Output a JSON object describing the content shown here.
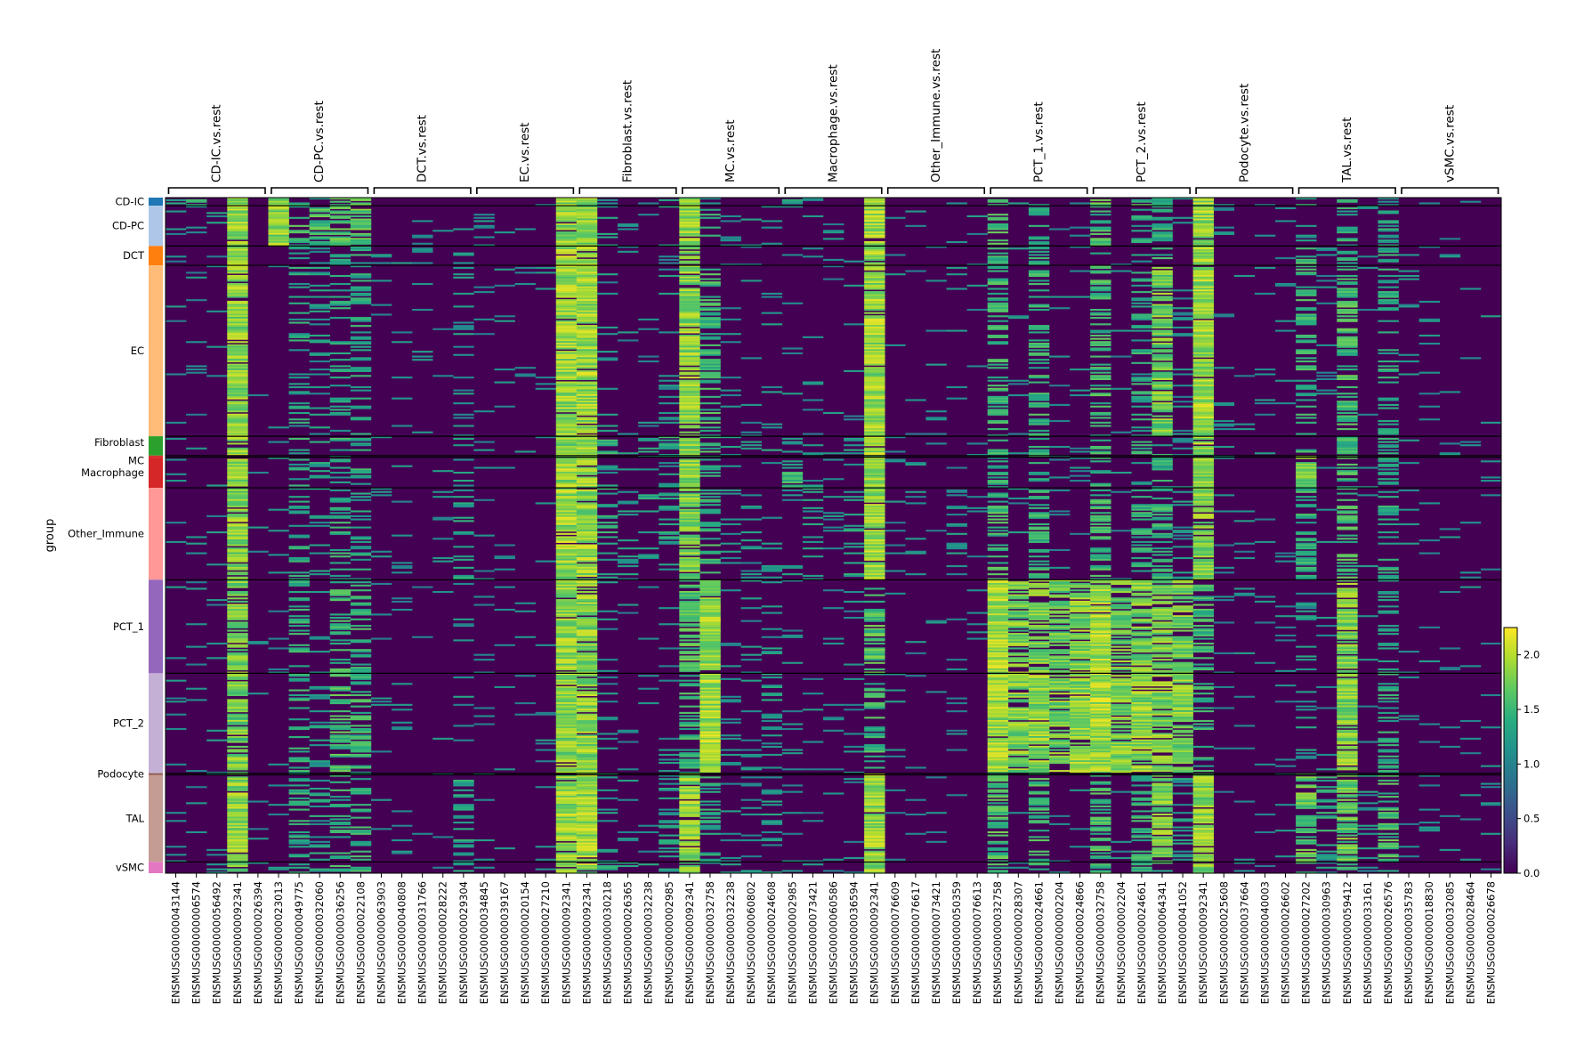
{
  "chart_data": {
    "type": "heatmap",
    "ylabel": "group",
    "groups": [
      {
        "name": "CD-IC",
        "color": "#1f77b4",
        "rows": 5
      },
      {
        "name": "CD-PC",
        "color": "#aec7e8",
        "rows": 25
      },
      {
        "name": "DCT",
        "color": "#ff7f0e",
        "rows": 12
      },
      {
        "name": "EC",
        "color": "#ffbb78",
        "rows": 106
      },
      {
        "name": "Fibroblast",
        "color": "#2ca02c",
        "rows": 12
      },
      {
        "name": "MC",
        "color": "#d62728",
        "rows": 1
      },
      {
        "name": "Macrophage",
        "color": "#d62728",
        "rows": 19
      },
      {
        "name": "Other_Immune",
        "color": "#ff9896",
        "rows": 57
      },
      {
        "name": "PCT_1",
        "color": "#9467bd",
        "rows": 58
      },
      {
        "name": "PCT_2",
        "color": "#c5b0d5",
        "rows": 62
      },
      {
        "name": "Podocyte",
        "color": "#8c564b",
        "rows": 1
      },
      {
        "name": "TAL",
        "color": "#c49c94",
        "rows": 54
      },
      {
        "name": "vSMC",
        "color": "#e377c2",
        "rows": 7
      }
    ],
    "gene_groups": [
      {
        "label": "CD-IC.vs.rest",
        "genes": [
          "ENSMUSG00000043144",
          "ENSMUSG00000006574",
          "ENSMUSG00000056492",
          "ENSMUSG00000092341",
          "ENSMUSG00000026394"
        ]
      },
      {
        "label": "CD-PC.vs.rest",
        "genes": [
          "ENSMUSG00000023013",
          "ENSMUSG00000049775",
          "ENSMUSG00000032060",
          "ENSMUSG00000036256",
          "ENSMUSG00000022108"
        ]
      },
      {
        "label": "DCT.vs.rest",
        "genes": [
          "ENSMUSG00000063903",
          "ENSMUSG00000040808",
          "ENSMUSG00000031766",
          "ENSMUSG00000028222",
          "ENSMUSG00000029304"
        ]
      },
      {
        "label": "EC.vs.rest",
        "genes": [
          "ENSMUSG00000034845",
          "ENSMUSG00000039167",
          "ENSMUSG00000020154",
          "ENSMUSG00000027210",
          "ENSMUSG00000092341"
        ]
      },
      {
        "label": "Fibroblast.vs.rest",
        "genes": [
          "ENSMUSG00000092341",
          "ENSMUSG00000030218",
          "ENSMUSG00000026365",
          "ENSMUSG00000032238",
          "ENSMUSG00000002985"
        ]
      },
      {
        "label": "MC.vs.rest",
        "genes": [
          "ENSMUSG00000092341",
          "ENSMUSG00000032758",
          "ENSMUSG00000032238",
          "ENSMUSG00000060802",
          "ENSMUSG00000024608"
        ]
      },
      {
        "label": "Macrophage.vs.rest",
        "genes": [
          "ENSMUSG00000002985",
          "ENSMUSG00000073421",
          "ENSMUSG00000060586",
          "ENSMUSG00000036594",
          "ENSMUSG00000092341"
        ]
      },
      {
        "label": "Other_Immune.vs.rest",
        "genes": [
          "ENSMUSG00000076609",
          "ENSMUSG00000076617",
          "ENSMUSG00000073421",
          "ENSMUSG00000050359",
          "ENSMUSG00000076613"
        ]
      },
      {
        "label": "PCT_1.vs.rest",
        "genes": [
          "ENSMUSG00000032758",
          "ENSMUSG00000028307",
          "ENSMUSG00000024661",
          "ENSMUSG00000002204",
          "ENSMUSG00000024866"
        ]
      },
      {
        "label": "PCT_2.vs.rest",
        "genes": [
          "ENSMUSG00000032758",
          "ENSMUSG00000002204",
          "ENSMUSG00000024661",
          "ENSMUSG00000064341",
          "ENSMUSG00000041052"
        ]
      },
      {
        "label": "Podocyte.vs.rest",
        "genes": [
          "ENSMUSG00000092341",
          "ENSMUSG00000025608",
          "ENSMUSG00000037664",
          "ENSMUSG00000040003",
          "ENSMUSG00000026602"
        ]
      },
      {
        "label": "TAL.vs.rest",
        "genes": [
          "ENSMUSG00000027202",
          "ENSMUSG00000030963",
          "ENSMUSG00000059412",
          "ENSMUSG00000033161",
          "ENSMUSG00000026576"
        ]
      },
      {
        "label": "vSMC.vs.rest",
        "genes": [
          "ENSMUSG00000035783",
          "ENSMUSG00000018830",
          "ENSMUSG00000032085",
          "ENSMUSG00000028464",
          "ENSMUSG00000026678"
        ]
      }
    ],
    "colorbar": {
      "colormap": "viridis",
      "vmin": 0.0,
      "vmax": 2.25,
      "ticks": [
        "0.0",
        "0.5",
        "1.0",
        "1.5",
        "2.0"
      ]
    },
    "expression_profile": {
      "note_scale": "approximate fraction of cells expressing each gene column per cell group (0-1), read visually",
      "values": [
        [
          0.35,
          0.35,
          0.3,
          0.95,
          0.1,
          0.75,
          0.4,
          0.35,
          0.55,
          0.75,
          0.05,
          0.05,
          0.05,
          0.05,
          0.05,
          0.1,
          0.05,
          0.05,
          0.05,
          0.95,
          0.95,
          0.15,
          0.1,
          0.1,
          0.2,
          0.9,
          0.3,
          0.1,
          0.05,
          0.1,
          0.3,
          0.1,
          0.05,
          0.05,
          0.95,
          0.05,
          0.05,
          0.05,
          0.05,
          0.05,
          0.6,
          0.1,
          0.5,
          0.05,
          0.1,
          0.6,
          0.1,
          0.5,
          0.5,
          0.2,
          0.95,
          0.05,
          0.05,
          0.05,
          0.05,
          0.3,
          0.1,
          0.3,
          0.1,
          0.3,
          0.05,
          0.05,
          0.05,
          0.05,
          0.05
        ],
        [
          0.1,
          0.1,
          0.15,
          0.95,
          0.05,
          0.9,
          0.5,
          0.55,
          0.6,
          0.7,
          0.05,
          0.05,
          0.05,
          0.05,
          0.1,
          0.1,
          0.05,
          0.05,
          0.05,
          0.95,
          0.95,
          0.2,
          0.1,
          0.1,
          0.2,
          0.9,
          0.35,
          0.1,
          0.1,
          0.2,
          0.1,
          0.05,
          0.05,
          0.05,
          0.95,
          0.05,
          0.05,
          0.05,
          0.05,
          0.05,
          0.5,
          0.05,
          0.4,
          0.05,
          0.1,
          0.5,
          0.05,
          0.3,
          0.4,
          0.1,
          0.95,
          0.05,
          0.05,
          0.05,
          0.05,
          0.2,
          0.05,
          0.4,
          0.05,
          0.3,
          0.05,
          0.05,
          0.05,
          0.05,
          0.05
        ],
        [
          0.05,
          0.05,
          0.05,
          0.95,
          0.05,
          0.1,
          0.3,
          0.2,
          0.3,
          0.35,
          0.15,
          0.05,
          0.05,
          0.05,
          0.3,
          0.05,
          0.05,
          0.05,
          0.05,
          0.95,
          0.95,
          0.1,
          0.05,
          0.05,
          0.1,
          0.85,
          0.2,
          0.05,
          0.05,
          0.1,
          0.05,
          0.05,
          0.05,
          0.05,
          0.95,
          0.05,
          0.05,
          0.05,
          0.05,
          0.05,
          0.4,
          0.05,
          0.4,
          0.05,
          0.05,
          0.4,
          0.05,
          0.3,
          0.4,
          0.1,
          0.95,
          0.05,
          0.05,
          0.05,
          0.05,
          0.5,
          0.1,
          0.5,
          0.1,
          0.4,
          0.05,
          0.05,
          0.05,
          0.05,
          0.05
        ],
        [
          0.05,
          0.05,
          0.05,
          0.9,
          0.05,
          0.05,
          0.3,
          0.2,
          0.3,
          0.35,
          0.05,
          0.05,
          0.05,
          0.05,
          0.15,
          0.05,
          0.05,
          0.05,
          0.05,
          0.95,
          0.95,
          0.15,
          0.05,
          0.05,
          0.1,
          0.9,
          0.5,
          0.05,
          0.05,
          0.1,
          0.05,
          0.05,
          0.05,
          0.05,
          0.95,
          0.05,
          0.05,
          0.05,
          0.05,
          0.05,
          0.5,
          0.05,
          0.45,
          0.05,
          0.05,
          0.5,
          0.05,
          0.35,
          0.8,
          0.1,
          0.95,
          0.05,
          0.05,
          0.05,
          0.05,
          0.45,
          0.05,
          0.55,
          0.05,
          0.35,
          0.05,
          0.05,
          0.05,
          0.05,
          0.05
        ],
        [
          0.05,
          0.05,
          0.05,
          0.9,
          0.05,
          0.05,
          0.35,
          0.3,
          0.4,
          0.35,
          0.05,
          0.05,
          0.05,
          0.05,
          0.25,
          0.05,
          0.05,
          0.05,
          0.05,
          0.95,
          0.95,
          0.45,
          0.3,
          0.3,
          0.4,
          0.9,
          0.45,
          0.2,
          0.15,
          0.3,
          0.2,
          0.1,
          0.05,
          0.35,
          0.95,
          0.05,
          0.05,
          0.05,
          0.05,
          0.05,
          0.45,
          0.05,
          0.45,
          0.05,
          0.05,
          0.45,
          0.05,
          0.35,
          0.45,
          0.1,
          0.9,
          0.05,
          0.05,
          0.05,
          0.05,
          0.4,
          0.05,
          0.5,
          0.05,
          0.35,
          0.05,
          0.05,
          0.05,
          0.05,
          0.05
        ],
        [
          0.05,
          0.05,
          0.05,
          0.9,
          0.05,
          0.05,
          0.3,
          0.2,
          0.3,
          0.3,
          0.05,
          0.05,
          0.05,
          0.05,
          0.2,
          0.05,
          0.05,
          0.05,
          0.05,
          0.95,
          0.95,
          0.3,
          0.2,
          0.2,
          0.3,
          0.9,
          0.4,
          0.1,
          0.1,
          0.2,
          0.3,
          0.1,
          0.05,
          0.2,
          0.95,
          0.05,
          0.05,
          0.05,
          0.05,
          0.05,
          0.4,
          0.05,
          0.4,
          0.05,
          0.05,
          0.4,
          0.05,
          0.3,
          0.4,
          0.1,
          0.9,
          0.05,
          0.05,
          0.05,
          0.05,
          0.8,
          0.1,
          0.5,
          0.1,
          0.4,
          0.05,
          0.05,
          0.05,
          0.05,
          0.05
        ],
        [
          0.05,
          0.05,
          0.05,
          0.9,
          0.05,
          0.05,
          0.3,
          0.25,
          0.35,
          0.35,
          0.05,
          0.05,
          0.05,
          0.05,
          0.2,
          0.05,
          0.05,
          0.05,
          0.05,
          0.95,
          0.95,
          0.2,
          0.1,
          0.1,
          0.2,
          0.9,
          0.4,
          0.1,
          0.1,
          0.2,
          0.5,
          0.1,
          0.05,
          0.1,
          0.95,
          0.05,
          0.05,
          0.05,
          0.05,
          0.05,
          0.4,
          0.05,
          0.4,
          0.05,
          0.05,
          0.4,
          0.05,
          0.3,
          0.4,
          0.1,
          0.9,
          0.05,
          0.05,
          0.05,
          0.05,
          0.8,
          0.1,
          0.5,
          0.1,
          0.4,
          0.05,
          0.05,
          0.05,
          0.05,
          0.05
        ],
        [
          0.05,
          0.05,
          0.05,
          0.85,
          0.05,
          0.05,
          0.3,
          0.2,
          0.35,
          0.3,
          0.05,
          0.05,
          0.05,
          0.05,
          0.25,
          0.05,
          0.05,
          0.05,
          0.05,
          0.95,
          0.95,
          0.35,
          0.2,
          0.25,
          0.3,
          0.85,
          0.45,
          0.15,
          0.15,
          0.25,
          0.1,
          0.3,
          0.1,
          0.25,
          0.95,
          0.05,
          0.1,
          0.05,
          0.15,
          0.05,
          0.5,
          0.05,
          0.45,
          0.05,
          0.05,
          0.5,
          0.1,
          0.4,
          0.45,
          0.15,
          0.85,
          0.05,
          0.05,
          0.05,
          0.05,
          0.45,
          0.05,
          0.55,
          0.05,
          0.35,
          0.05,
          0.05,
          0.05,
          0.05,
          0.05
        ],
        [
          0.05,
          0.05,
          0.05,
          0.8,
          0.05,
          0.05,
          0.4,
          0.2,
          0.5,
          0.45,
          0.05,
          0.05,
          0.05,
          0.05,
          0.1,
          0.05,
          0.05,
          0.05,
          0.05,
          0.9,
          0.9,
          0.1,
          0.05,
          0.05,
          0.1,
          0.6,
          0.95,
          0.1,
          0.1,
          0.2,
          0.05,
          0.05,
          0.05,
          0.05,
          0.6,
          0.05,
          0.05,
          0.05,
          0.05,
          0.05,
          0.98,
          0.8,
          0.8,
          0.75,
          0.85,
          0.98,
          0.75,
          0.8,
          0.8,
          0.8,
          0.5,
          0.05,
          0.05,
          0.05,
          0.05,
          0.15,
          0.05,
          0.85,
          0.05,
          0.3,
          0.05,
          0.05,
          0.05,
          0.05,
          0.05
        ],
        [
          0.05,
          0.05,
          0.05,
          0.8,
          0.05,
          0.05,
          0.4,
          0.2,
          0.55,
          0.5,
          0.05,
          0.05,
          0.05,
          0.05,
          0.1,
          0.05,
          0.05,
          0.05,
          0.05,
          0.9,
          0.9,
          0.1,
          0.05,
          0.05,
          0.1,
          0.5,
          0.98,
          0.1,
          0.1,
          0.2,
          0.05,
          0.05,
          0.05,
          0.05,
          0.5,
          0.05,
          0.05,
          0.05,
          0.05,
          0.05,
          0.99,
          0.85,
          0.9,
          0.8,
          0.9,
          0.99,
          0.85,
          0.9,
          0.85,
          0.85,
          0.4,
          0.05,
          0.05,
          0.05,
          0.05,
          0.15,
          0.05,
          0.85,
          0.05,
          0.35,
          0.05,
          0.05,
          0.05,
          0.05,
          0.05
        ],
        [
          0.05,
          0.05,
          0.05,
          0.9,
          0.05,
          0.05,
          0.3,
          0.2,
          0.3,
          0.3,
          0.05,
          0.05,
          0.05,
          0.05,
          0.2,
          0.05,
          0.05,
          0.05,
          0.05,
          0.95,
          0.95,
          0.3,
          0.2,
          0.2,
          0.3,
          0.9,
          0.4,
          0.1,
          0.1,
          0.2,
          0.3,
          0.1,
          0.05,
          0.2,
          0.95,
          0.05,
          0.05,
          0.05,
          0.05,
          0.05,
          0.5,
          0.05,
          0.4,
          0.05,
          0.05,
          0.4,
          0.05,
          0.3,
          0.4,
          0.1,
          0.9,
          0.05,
          0.05,
          0.05,
          0.05,
          0.5,
          0.1,
          0.6,
          0.1,
          0.4,
          0.05,
          0.05,
          0.05,
          0.05,
          0.05
        ],
        [
          0.05,
          0.05,
          0.05,
          0.9,
          0.05,
          0.05,
          0.35,
          0.25,
          0.4,
          0.4,
          0.05,
          0.05,
          0.05,
          0.05,
          0.3,
          0.05,
          0.05,
          0.05,
          0.05,
          0.95,
          0.95,
          0.2,
          0.1,
          0.1,
          0.2,
          0.9,
          0.35,
          0.1,
          0.1,
          0.2,
          0.05,
          0.05,
          0.05,
          0.05,
          0.95,
          0.05,
          0.05,
          0.05,
          0.05,
          0.05,
          0.55,
          0.05,
          0.5,
          0.05,
          0.05,
          0.55,
          0.05,
          0.45,
          0.85,
          0.2,
          0.9,
          0.05,
          0.05,
          0.05,
          0.05,
          0.7,
          0.35,
          0.75,
          0.2,
          0.55,
          0.05,
          0.05,
          0.05,
          0.05,
          0.05
        ],
        [
          0.05,
          0.05,
          0.05,
          0.85,
          0.05,
          0.05,
          0.35,
          0.25,
          0.45,
          0.4,
          0.05,
          0.05,
          0.05,
          0.05,
          0.2,
          0.05,
          0.05,
          0.05,
          0.05,
          0.95,
          0.95,
          0.3,
          0.2,
          0.2,
          0.3,
          0.85,
          0.35,
          0.15,
          0.15,
          0.25,
          0.1,
          0.05,
          0.05,
          0.1,
          0.95,
          0.05,
          0.05,
          0.05,
          0.05,
          0.05,
          0.45,
          0.05,
          0.45,
          0.05,
          0.05,
          0.45,
          0.05,
          0.35,
          0.45,
          0.1,
          0.85,
          0.05,
          0.05,
          0.05,
          0.05,
          0.45,
          0.15,
          0.6,
          0.15,
          0.4,
          0.15,
          0.1,
          0.05,
          0.1,
          0.15
        ]
      ]
    }
  }
}
